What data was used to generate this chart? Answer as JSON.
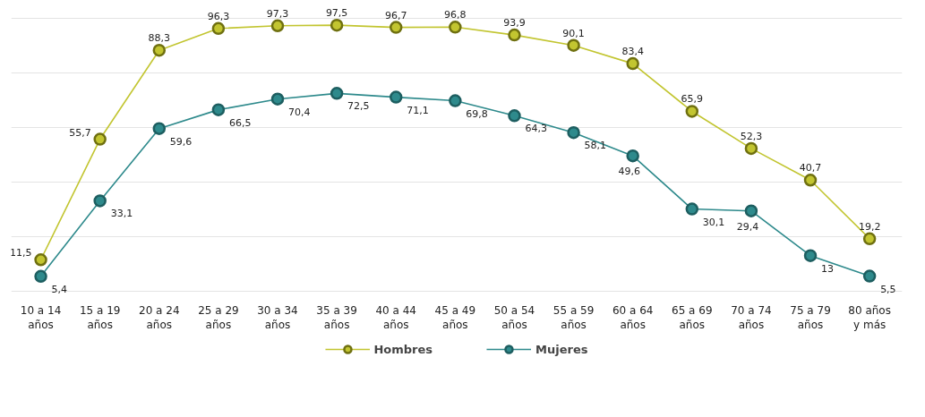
{
  "chart_data": {
    "type": "line",
    "categories": [
      "10 a 14\naños",
      "15 a 19\naños",
      "20 a 24\naños",
      "25 a 29\naños",
      "30 a 34\naños",
      "35 a 39\naños",
      "40 a 44\naños",
      "45 a 49\naños",
      "50 a 54\naños",
      "55 a 59\naños",
      "60 a 64\naños",
      "65 a 69\naños",
      "70 a 74\naños",
      "75 a 79\naños",
      "80 años\ny más"
    ],
    "series": [
      {
        "name": "Hombres",
        "color": "#c2c530",
        "values": [
          11.5,
          55.7,
          88.3,
          96.3,
          97.3,
          97.5,
          96.7,
          96.8,
          93.9,
          90.1,
          83.4,
          65.9,
          52.3,
          40.7,
          19.2
        ],
        "value_labels": [
          "11,5",
          "55,7",
          "88,3",
          "96,3",
          "97,3",
          "97,5",
          "96,7",
          "96,8",
          "93,9",
          "90,1",
          "83,4",
          "65,9",
          "52,3",
          "40,7",
          "19,2"
        ]
      },
      {
        "name": "Mujeres",
        "color": "#2e8a8c",
        "values": [
          5.4,
          33.1,
          59.6,
          66.5,
          70.4,
          72.5,
          71.1,
          69.8,
          64.3,
          58.1,
          49.6,
          30.1,
          29.4,
          13,
          5.5
        ],
        "value_labels": [
          "5,4",
          "33,1",
          "59,6",
          "66,5",
          "70,4",
          "72,5",
          "71,1",
          "69,8",
          "64,3",
          "58,1",
          "49,6",
          "30,1",
          "29,4",
          "13",
          "5,5"
        ]
      }
    ],
    "grid": "y",
    "tick_labels": "x",
    "marker": "circle",
    "line_style": "solid",
    "legend": "bottom"
  }
}
